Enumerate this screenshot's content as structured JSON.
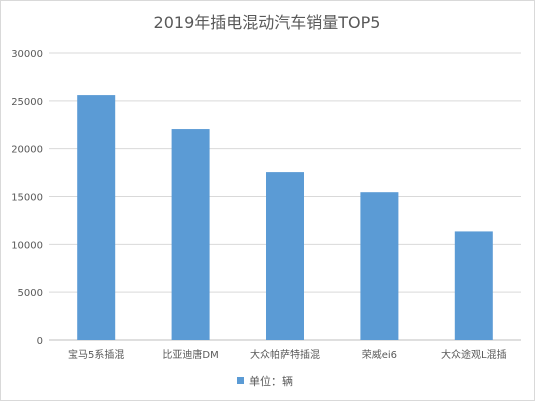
{
  "chart_data": {
    "type": "bar",
    "title": "2019年插电混动汽车销量TOP5",
    "categories": [
      "宝马5系插混",
      "比亚迪唐DM",
      "大众帕萨特插混",
      "荣威ei6",
      "大众途观L混插"
    ],
    "series": [
      {
        "name": "单位：辆",
        "values": [
          25600,
          22050,
          17550,
          15450,
          11350
        ],
        "color": "#5b9bd5"
      }
    ],
    "ylim": [
      0,
      30000
    ],
    "yticks": [
      "0",
      "5000",
      "10000",
      "15000",
      "20000",
      "25000",
      "30000"
    ],
    "grid": true,
    "legend_position": "bottom"
  }
}
